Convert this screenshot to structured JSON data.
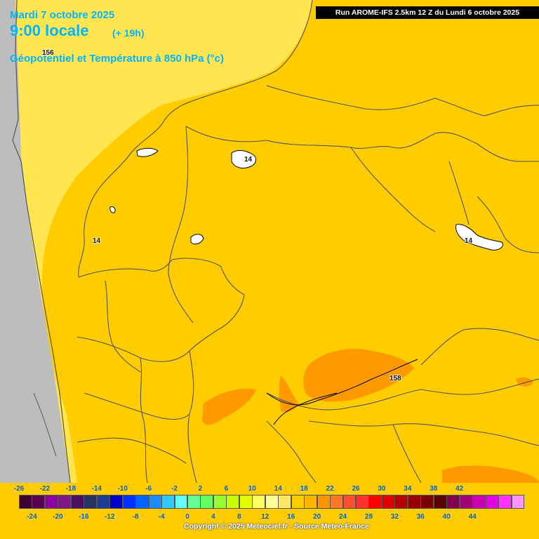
{
  "header": {
    "date": "Mardi 7 octobre 2025",
    "time": "9:00 locale",
    "lead": "(+ 19h)",
    "parameter": "Géopotentiel et Température à 850 hPa (°c)"
  },
  "run_info": "Run AROME-IFS 2.5km 12 Z du Lundi 6 octobre 2025",
  "contour_labels": [
    "156",
    "14",
    "14",
    "14",
    "158"
  ],
  "legend": {
    "top_labels": [
      "-26",
      "-22",
      "-18",
      "-14",
      "-10",
      "-6",
      "-2",
      "2",
      "6",
      "10",
      "14",
      "18",
      "22",
      "26",
      "30",
      "34",
      "38",
      "42"
    ],
    "bottom_labels": [
      "-24",
      "-20",
      "-16",
      "-12",
      "-8",
      "-4",
      "0",
      "4",
      "8",
      "12",
      "16",
      "20",
      "24",
      "28",
      "32",
      "36",
      "40",
      "44"
    ],
    "colors": [
      "#3c0032",
      "#5a0050",
      "#8c00a0",
      "#82148c",
      "#4b0f64",
      "#283264",
      "#1e3c96",
      "#0000c8",
      "#0032ff",
      "#0064ff",
      "#1e8cff",
      "#32c8ff",
      "#64ffff",
      "#64ff96",
      "#64ff64",
      "#96ff32",
      "#c8ff00",
      "#e6ff00",
      "#ffff64",
      "#ffff96",
      "#ffe664",
      "#ffcc00",
      "#ffb400",
      "#ff9600",
      "#ff7828",
      "#ff5032",
      "#ff3232",
      "#ff0000",
      "#dc0000",
      "#b40000",
      "#960000",
      "#780000",
      "#5a0000",
      "#820050",
      "#a00078",
      "#c800b4",
      "#e600e6",
      "#ff32ff",
      "#ff96ff"
    ],
    "unit": "°c"
  },
  "copyright": "Copyright © 2025 Meteociel.fr - Source Meteo-France",
  "palette": {
    "sea": "#c0c0c0",
    "warm_12_14": "#ffe664",
    "warm_14_16": "#ffcc00",
    "warm_16_18": "#ff9900",
    "title": "#00b4ff"
  }
}
